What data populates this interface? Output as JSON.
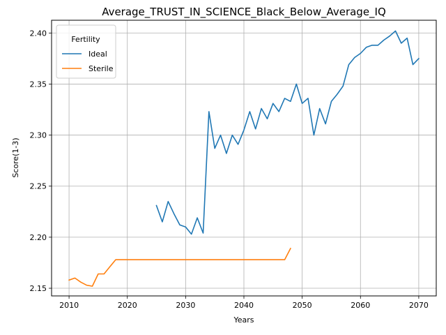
{
  "chart_data": {
    "type": "line",
    "title": "Average_TRUST_IN_SCIENCE_Black_Below_Average_IQ",
    "xlabel": "Years",
    "ylabel": "Score(1-3)",
    "xlim": [
      2007,
      2073
    ],
    "ylim": [
      2.1425,
      2.4125
    ],
    "xticks": [
      2010,
      2020,
      2030,
      2040,
      2050,
      2060,
      2070
    ],
    "xtick_labels": [
      "2010",
      "2020",
      "2030",
      "2040",
      "2050",
      "2060",
      "2070"
    ],
    "yticks": [
      2.15,
      2.2,
      2.25,
      2.3,
      2.35,
      2.4
    ],
    "ytick_labels": [
      "2.15",
      "2.20",
      "2.25",
      "2.30",
      "2.35",
      "2.40"
    ],
    "grid": true,
    "legend": {
      "title": "Fertility",
      "placement": "upper-left"
    },
    "series": [
      {
        "name": "Ideal",
        "color": "#1f77b4",
        "x": [
          2025,
          2026,
          2027,
          2028,
          2029,
          2030,
          2031,
          2032,
          2033,
          2034,
          2035,
          2036,
          2037,
          2038,
          2039,
          2040,
          2041,
          2042,
          2043,
          2044,
          2045,
          2046,
          2047,
          2048,
          2049,
          2050,
          2051,
          2052,
          2053,
          2054,
          2055,
          2056,
          2057,
          2058,
          2059,
          2060,
          2061,
          2062,
          2063,
          2064,
          2065,
          2066,
          2067,
          2068,
          2069,
          2070
        ],
        "y": [
          2.231,
          2.215,
          2.235,
          2.223,
          2.212,
          2.21,
          2.203,
          2.219,
          2.204,
          2.323,
          2.287,
          2.3,
          2.282,
          2.3,
          2.291,
          2.305,
          2.323,
          2.306,
          2.326,
          2.316,
          2.331,
          2.323,
          2.336,
          2.333,
          2.35,
          2.331,
          2.336,
          2.3,
          2.326,
          2.311,
          2.333,
          2.34,
          2.348,
          2.369,
          2.376,
          2.38,
          2.386,
          2.388,
          2.388,
          2.393,
          2.397,
          2.402,
          2.39,
          2.395,
          2.369,
          2.375
        ]
      },
      {
        "name": "Sterile",
        "color": "#ff7f0e",
        "x": [
          2010,
          2011,
          2012,
          2013,
          2014,
          2015,
          2016,
          2017,
          2018,
          2019,
          2020,
          2021,
          2022,
          2023,
          2024,
          2025,
          2026,
          2027,
          2028,
          2029,
          2030,
          2031,
          2032,
          2033,
          2034,
          2035,
          2036,
          2037,
          2038,
          2039,
          2040,
          2041,
          2042,
          2043,
          2044,
          2045,
          2046,
          2047,
          2048
        ],
        "y": [
          2.158,
          2.16,
          2.156,
          2.153,
          2.152,
          2.164,
          2.164,
          2.171,
          2.178,
          2.178,
          2.178,
          2.178,
          2.178,
          2.178,
          2.178,
          2.178,
          2.178,
          2.178,
          2.178,
          2.178,
          2.178,
          2.178,
          2.178,
          2.178,
          2.178,
          2.178,
          2.178,
          2.178,
          2.178,
          2.178,
          2.178,
          2.178,
          2.178,
          2.178,
          2.178,
          2.178,
          2.178,
          2.178,
          2.189
        ]
      }
    ]
  }
}
